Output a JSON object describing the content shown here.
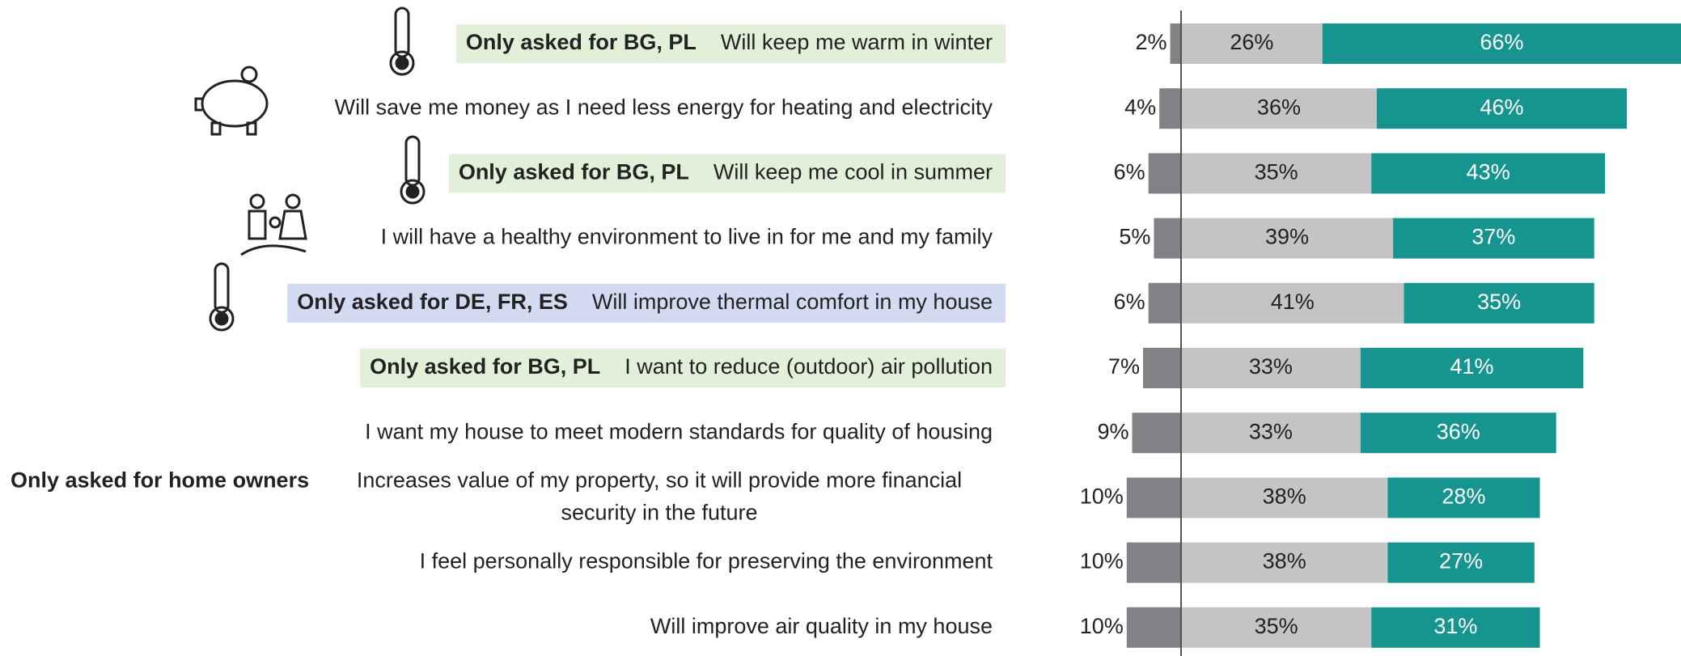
{
  "chart_data": {
    "type": "diverging-stacked-bar",
    "categories": [
      "Will keep me warm in winter",
      "Will save me money as I need less energy for heating and electricity",
      "Will keep me cool in summer",
      "I will have a healthy environment to live in for me and my family",
      "Will improve thermal comfort in my house",
      "I want to reduce (outdoor) air pollution",
      "I want my house to meet modern standards for quality of housing",
      [
        "Increases value of my property, so it will provide more financial",
        "security in the future"
      ],
      "I feel personally responsible for preserving the environment",
      "Will improve air quality in my house"
    ],
    "notes": [
      "Only asked for BG, PL",
      null,
      "Only asked for BG, PL",
      null,
      "Only asked for DE, FR, ES",
      "Only asked for BG, PL",
      null,
      "Only asked for home owners",
      null,
      null
    ],
    "highlights": [
      "#e2efd9",
      null,
      "#e2efd9",
      null,
      "#d3dbf2",
      "#e2efd9",
      null,
      null,
      null,
      null
    ],
    "series": [
      {
        "color": "#808285",
        "values": [
          2,
          4,
          6,
          5,
          6,
          7,
          9,
          10,
          10,
          10
        ],
        "value_labels": [
          "2%",
          "4%",
          "6%",
          "5%",
          "6%",
          "7%",
          "9%",
          "10%",
          "10%",
          "10%"
        ]
      },
      {
        "color": "#c4c4c6",
        "values": [
          26,
          36,
          35,
          39,
          41,
          33,
          33,
          38,
          38,
          35
        ],
        "value_labels": [
          "26%",
          "36%",
          "35%",
          "39%",
          "41%",
          "33%",
          "33%",
          "38%",
          "38%",
          "35%"
        ]
      },
      {
        "color": "#16948f",
        "values": [
          66,
          46,
          43,
          37,
          35,
          41,
          36,
          28,
          27,
          31
        ],
        "value_labels": [
          "66%",
          "46%",
          "43%",
          "37%",
          "35%",
          "41%",
          "36%",
          "28%",
          "27%",
          "31%"
        ]
      }
    ]
  }
}
